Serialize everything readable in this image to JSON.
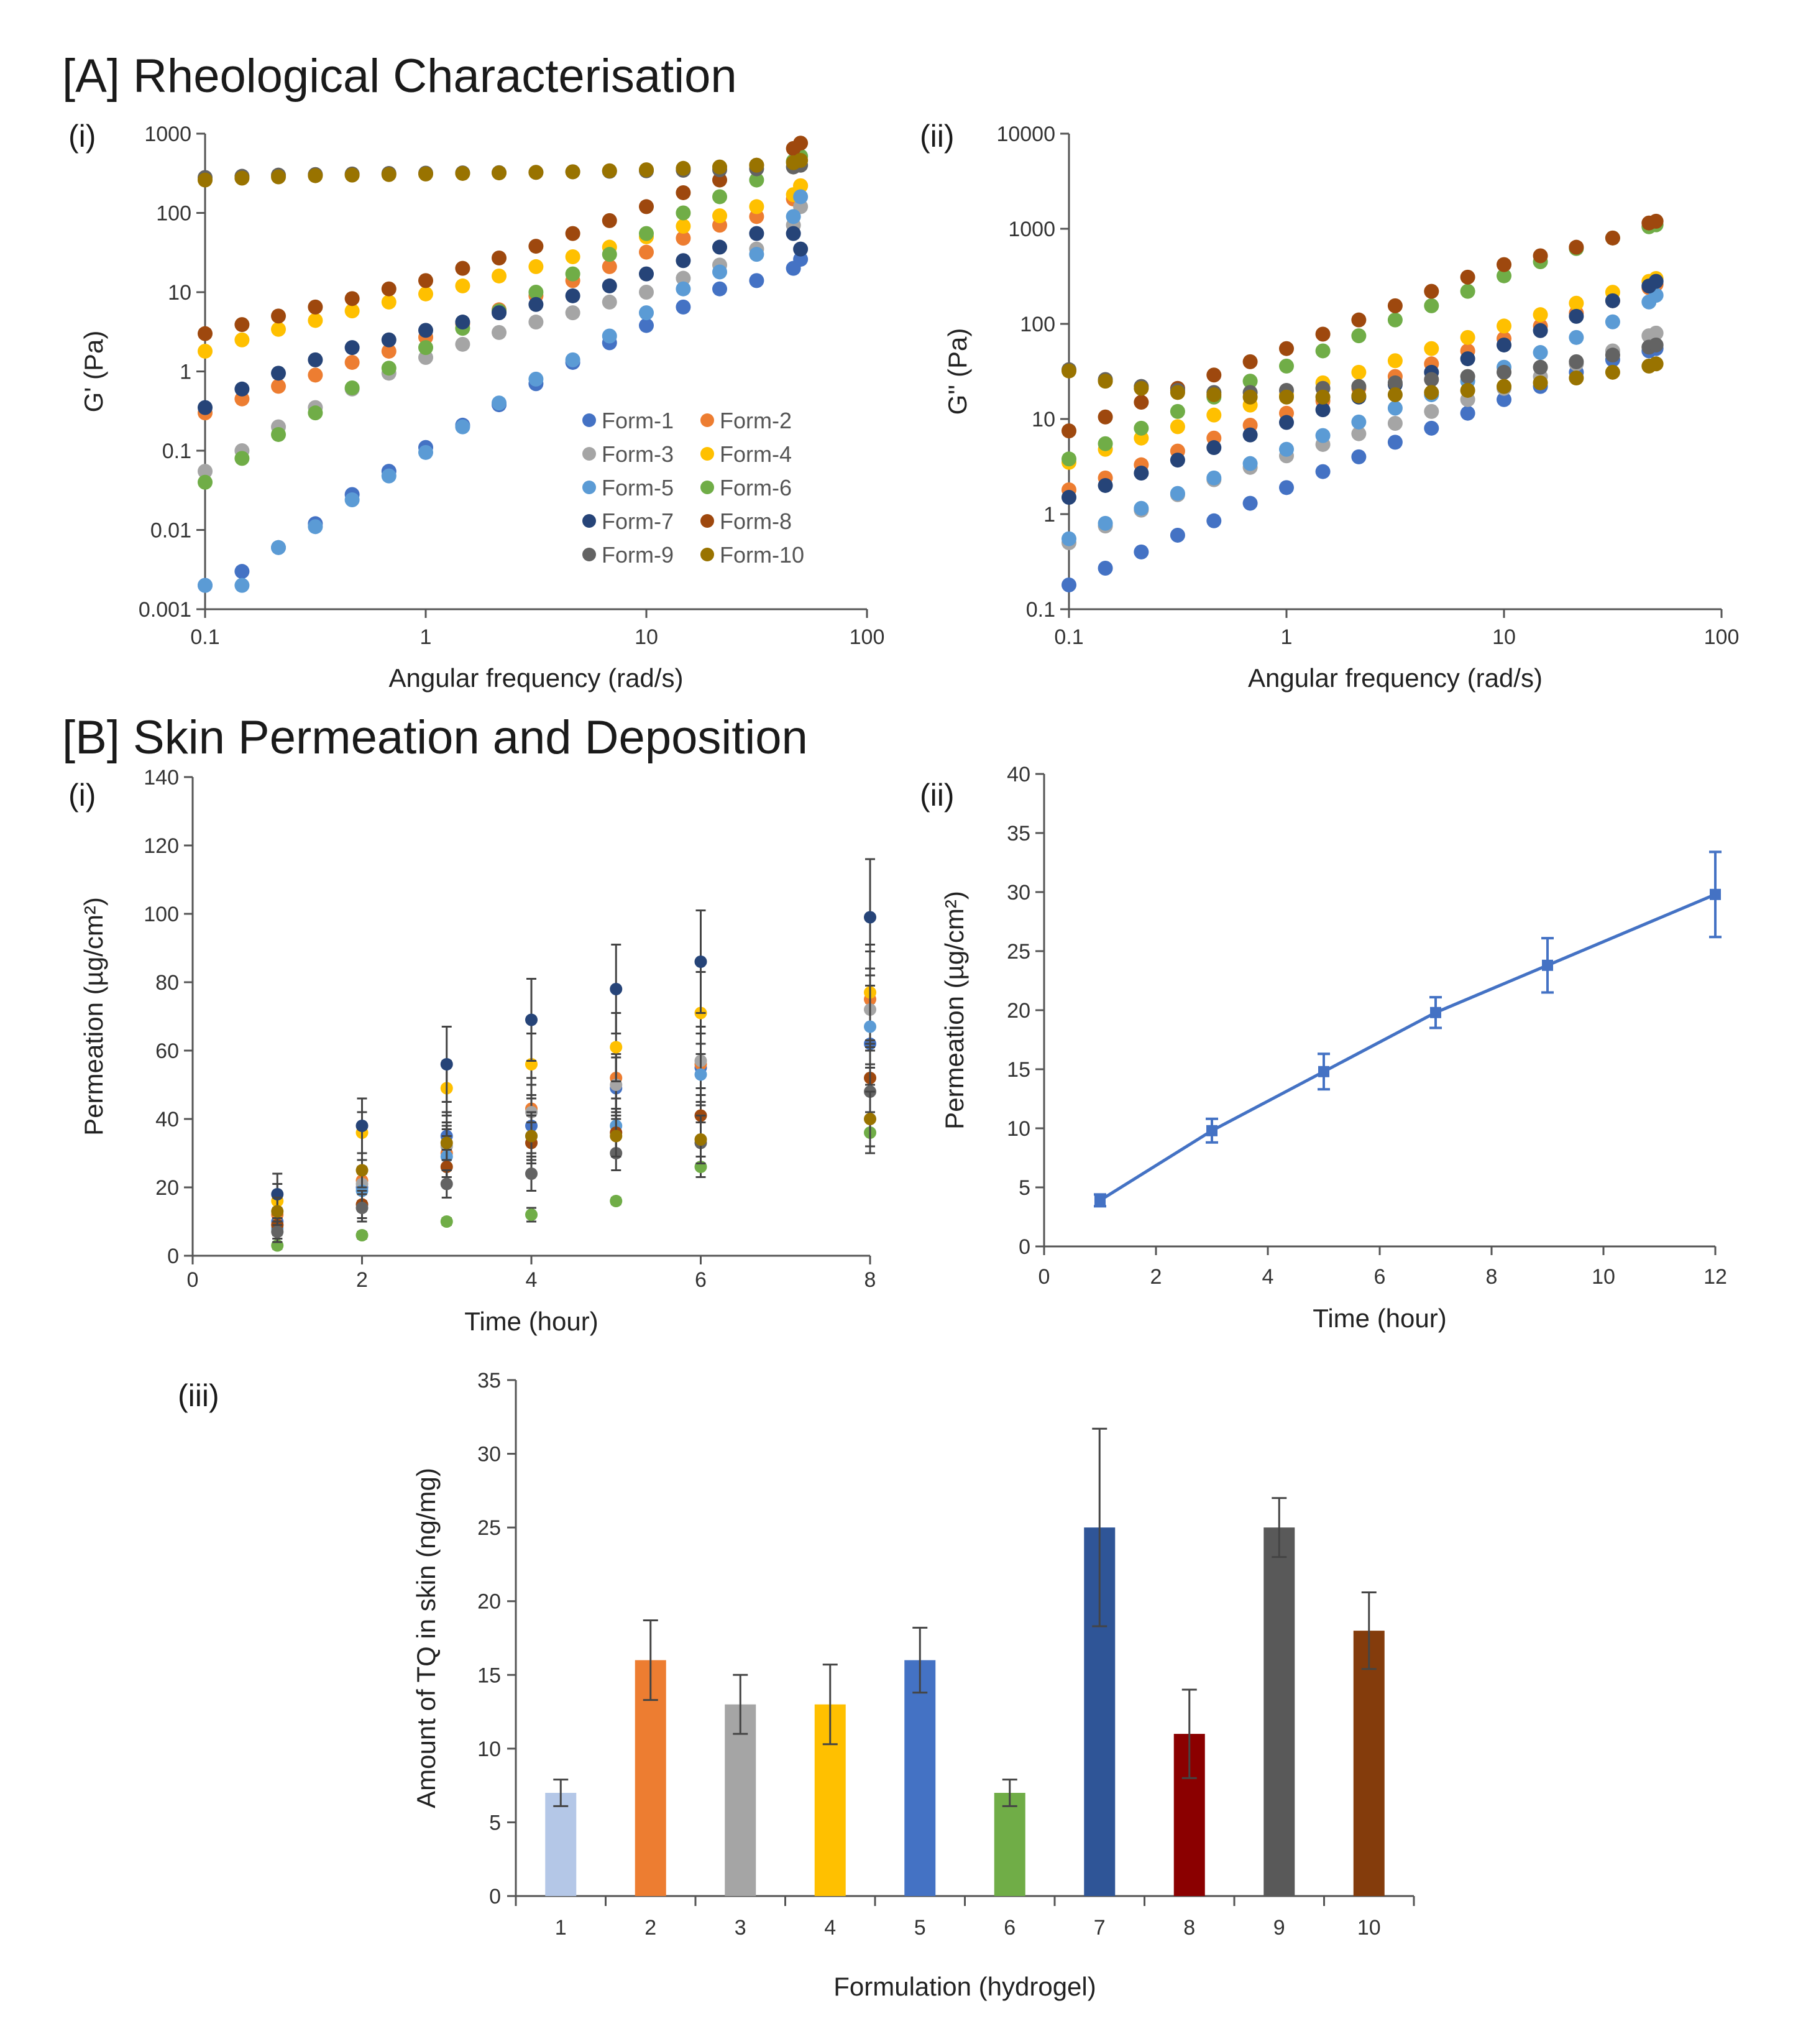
{
  "headings": {
    "a": "[A] Rheological Characterisation",
    "b": "[B] Skin Permeation and Deposition"
  },
  "panel_labels": {
    "a_i": "(i)",
    "a_ii": "(ii)",
    "b_i": "(i)",
    "b_ii": "(ii)",
    "b_iii": "(iii)"
  },
  "chart_data": [
    {
      "id": "a_i",
      "type": "scatter",
      "xlabel": "Angular frequency (rad/s)",
      "ylabel": "G' (Pa)",
      "xscale": "log",
      "yscale": "log",
      "xlim": [
        0.1,
        100
      ],
      "ylim": [
        0.001,
        1000
      ],
      "x_ticks": [
        "0.1",
        "1",
        "10",
        "100"
      ],
      "y_ticks": [
        "0.001",
        "0.01",
        "0.1",
        "1",
        "10",
        "100",
        "1000"
      ],
      "legend_position": "bottom-right",
      "x": [
        0.1,
        0.147,
        0.215,
        0.316,
        0.464,
        0.681,
        1.0,
        1.47,
        2.15,
        3.16,
        4.64,
        6.81,
        10.0,
        14.7,
        21.5,
        31.6,
        46.4,
        50.0
      ],
      "series": [
        {
          "name": "Form-1",
          "color": "#4472c4",
          "values": [
            0.002,
            0.003,
            0.006,
            0.012,
            0.028,
            0.055,
            0.11,
            0.21,
            0.38,
            0.7,
            1.3,
            2.3,
            3.8,
            6.5,
            11,
            14,
            20,
            26
          ]
        },
        {
          "name": "Form-2",
          "color": "#ed7d31",
          "values": [
            0.3,
            0.45,
            0.65,
            0.9,
            1.3,
            1.8,
            2.7,
            4,
            6,
            9,
            14,
            21,
            32,
            48,
            70,
            90,
            150,
            220
          ]
        },
        {
          "name": "Form-3",
          "color": "#a5a5a5",
          "values": [
            0.055,
            0.1,
            0.2,
            0.35,
            0.6,
            0.95,
            1.5,
            2.2,
            3.1,
            4.2,
            5.5,
            7.5,
            10,
            15,
            22,
            35,
            70,
            120
          ]
        },
        {
          "name": "Form-4",
          "color": "#ffc000",
          "values": [
            1.8,
            2.5,
            3.4,
            4.4,
            5.8,
            7.5,
            9.5,
            12,
            16,
            21,
            28,
            37,
            50,
            68,
            92,
            120,
            170,
            220
          ]
        },
        {
          "name": "Form-5",
          "color": "#5b9bd5",
          "values": [
            0.002,
            0.002,
            0.006,
            0.011,
            0.024,
            0.048,
            0.095,
            0.2,
            0.4,
            0.8,
            1.4,
            2.8,
            5.5,
            11,
            18,
            30,
            90,
            160
          ]
        },
        {
          "name": "Form-6",
          "color": "#70ad47",
          "values": [
            0.04,
            0.08,
            0.16,
            0.3,
            0.62,
            1.1,
            2.0,
            3.5,
            5.8,
            10,
            17,
            30,
            55,
            100,
            160,
            260,
            450,
            520
          ]
        },
        {
          "name": "Form-7",
          "color": "#264478",
          "values": [
            0.35,
            0.6,
            0.95,
            1.4,
            2.0,
            2.5,
            3.3,
            4.2,
            5.5,
            7,
            9,
            12,
            17,
            25,
            37,
            55,
            55,
            35
          ]
        },
        {
          "name": "Form-8",
          "color": "#9e480e",
          "values": [
            3.0,
            3.9,
            5.0,
            6.5,
            8.3,
            11,
            14,
            20,
            27,
            38,
            55,
            80,
            120,
            180,
            260,
            400,
            650,
            760
          ]
        },
        {
          "name": "Form-9",
          "color": "#636363",
          "values": [
            280,
            290,
            300,
            305,
            310,
            315,
            318,
            320,
            322,
            325,
            330,
            335,
            340,
            345,
            350,
            360,
            380,
            400
          ]
        },
        {
          "name": "Form-10",
          "color": "#997300",
          "values": [
            260,
            275,
            285,
            295,
            300,
            305,
            310,
            315,
            320,
            325,
            330,
            340,
            350,
            365,
            380,
            400,
            430,
            460
          ]
        }
      ]
    },
    {
      "id": "a_ii",
      "type": "scatter",
      "xlabel": "Angular frequency (rad/s)",
      "ylabel": "G'' (Pa)",
      "xscale": "log",
      "yscale": "log",
      "xlim": [
        0.1,
        100
      ],
      "ylim": [
        0.1,
        10000
      ],
      "x_ticks": [
        "0.1",
        "1",
        "10",
        "100"
      ],
      "y_ticks": [
        "0.1",
        "1",
        "10",
        "100",
        "1000",
        "10000"
      ],
      "x": [
        0.1,
        0.147,
        0.215,
        0.316,
        0.464,
        0.681,
        1.0,
        1.47,
        2.15,
        3.16,
        4.64,
        6.81,
        10.0,
        14.7,
        21.5,
        31.6,
        46.4,
        50.0
      ],
      "series": [
        {
          "name": "Form-1",
          "color": "#4472c4",
          "values": [
            0.18,
            0.27,
            0.4,
            0.6,
            0.85,
            1.3,
            1.9,
            2.8,
            4.0,
            5.7,
            8.0,
            11.5,
            16,
            22,
            31,
            42,
            52,
            55
          ]
        },
        {
          "name": "Form-2",
          "color": "#ed7d31",
          "values": [
            1.8,
            2.4,
            3.3,
            4.6,
            6.3,
            8.6,
            11.5,
            15.5,
            21,
            28,
            38,
            52,
            70,
            95,
            130,
            175,
            240,
            260
          ]
        },
        {
          "name": "Form-3",
          "color": "#a5a5a5",
          "values": [
            0.5,
            0.75,
            1.1,
            1.6,
            2.3,
            3.1,
            4.1,
            5.4,
            7.0,
            9.0,
            12,
            16,
            21,
            28,
            38,
            52,
            75,
            80
          ]
        },
        {
          "name": "Form-4",
          "color": "#ffc000",
          "values": [
            3.5,
            4.8,
            6.3,
            8.3,
            11,
            14,
            18,
            24,
            31,
            41,
            55,
            72,
            95,
            125,
            165,
            215,
            280,
            300
          ]
        },
        {
          "name": "Form-5",
          "color": "#5b9bd5",
          "values": [
            0.55,
            0.8,
            1.15,
            1.65,
            2.4,
            3.4,
            4.8,
            6.7,
            9.3,
            13,
            18,
            25,
            35,
            50,
            72,
            105,
            170,
            200
          ]
        },
        {
          "name": "Form-6",
          "color": "#70ad47",
          "values": [
            3.8,
            5.5,
            8.0,
            12,
            17,
            25,
            36,
            52,
            75,
            110,
            155,
            220,
            320,
            450,
            620,
            800,
            1050,
            1100
          ]
        },
        {
          "name": "Form-7",
          "color": "#264478",
          "values": [
            1.5,
            2.0,
            2.7,
            3.7,
            5.0,
            6.8,
            9.2,
            12.5,
            17,
            23,
            31,
            43,
            60,
            85,
            120,
            175,
            250,
            280
          ]
        },
        {
          "name": "Form-8",
          "color": "#9e480e",
          "values": [
            7.5,
            10.5,
            15,
            21,
            29,
            40,
            55,
            78,
            110,
            155,
            220,
            310,
            420,
            520,
            640,
            800,
            1150,
            1200
          ]
        },
        {
          "name": "Form-9",
          "color": "#636363",
          "values": [
            33,
            26,
            22,
            20,
            19,
            19,
            20,
            21,
            22,
            24,
            26,
            28,
            31,
            35,
            40,
            47,
            57,
            60
          ]
        },
        {
          "name": "Form-10",
          "color": "#997300",
          "values": [
            32,
            25,
            21,
            19,
            18,
            17,
            17,
            17,
            17.5,
            18,
            19,
            20,
            22,
            24,
            27,
            31,
            36,
            38
          ]
        }
      ]
    },
    {
      "id": "b_i",
      "type": "scatter",
      "xlabel": "Time (hour)",
      "ylabel": "Permeation (µg/cm²)",
      "xlim": [
        0,
        8
      ],
      "ylim": [
        0,
        140
      ],
      "x_ticks": [
        "0",
        "2",
        "4",
        "6",
        "8"
      ],
      "y_ticks": [
        "0",
        "20",
        "40",
        "60",
        "80",
        "100",
        "120",
        "140"
      ],
      "x": [
        1,
        2,
        3,
        4,
        5,
        6,
        8
      ],
      "series": [
        {
          "name": "Form-1",
          "color": "#4472c4",
          "values": [
            10,
            20,
            35,
            38,
            49,
            55,
            62
          ],
          "errors": [
            4,
            5,
            7,
            8,
            9,
            10,
            12
          ]
        },
        {
          "name": "Form-2",
          "color": "#ed7d31",
          "values": [
            12,
            22,
            30,
            43,
            52,
            56,
            75
          ],
          "errors": [
            4,
            6,
            7,
            9,
            10,
            11,
            14
          ]
        },
        {
          "name": "Form-3",
          "color": "#a5a5a5",
          "values": [
            9,
            21,
            32,
            42,
            50,
            57,
            72
          ],
          "errors": [
            4,
            5,
            7,
            8,
            9,
            10,
            12
          ]
        },
        {
          "name": "Form-4",
          "color": "#ffc000",
          "values": [
            16,
            36,
            49,
            56,
            61,
            71,
            77
          ],
          "errors": [
            5,
            6,
            8,
            9,
            10,
            12,
            14
          ]
        },
        {
          "name": "Form-5",
          "color": "#5b9bd5",
          "values": [
            8,
            19,
            29,
            35,
            38,
            53,
            67
          ],
          "errors": [
            3,
            5,
            6,
            7,
            8,
            9,
            12
          ]
        },
        {
          "name": "Form-6",
          "color": "#70ad47",
          "values": [
            3,
            6,
            10,
            12,
            16,
            26,
            36
          ],
          "errors": [
            1,
            1,
            1,
            2,
            1,
            3,
            6
          ]
        },
        {
          "name": "Form-7",
          "color": "#264478",
          "values": [
            18,
            38,
            56,
            69,
            78,
            86,
            99
          ],
          "errors": [
            6,
            8,
            11,
            12,
            13,
            15,
            17
          ]
        },
        {
          "name": "Form-8",
          "color": "#9e480e",
          "values": [
            9,
            15,
            26,
            33,
            36,
            41,
            52
          ],
          "errors": [
            3,
            4,
            5,
            6,
            7,
            8,
            10
          ]
        },
        {
          "name": "Form-9",
          "color": "#636363",
          "values": [
            7,
            14,
            21,
            24,
            30,
            33,
            48
          ],
          "errors": [
            3,
            4,
            4,
            5,
            5,
            6,
            8
          ]
        },
        {
          "name": "Form-10",
          "color": "#997300",
          "values": [
            13,
            25,
            33,
            35,
            35,
            34,
            40
          ],
          "errors": [
            4,
            5,
            5,
            6,
            6,
            7,
            8
          ]
        }
      ]
    },
    {
      "id": "b_ii",
      "type": "line",
      "xlabel": "Time (hour)",
      "ylabel": "Permeation (µg/cm²)",
      "xlim": [
        0,
        12
      ],
      "ylim": [
        0,
        40
      ],
      "x_ticks": [
        "0",
        "2",
        "4",
        "6",
        "8",
        "10",
        "12"
      ],
      "y_ticks": [
        "0",
        "5",
        "10",
        "15",
        "20",
        "25",
        "30",
        "35",
        "40"
      ],
      "x": [
        1,
        3,
        5,
        7,
        9,
        12
      ],
      "series": [
        {
          "name": "Permeation",
          "color": "#4472c4",
          "values": [
            3.9,
            9.8,
            14.8,
            19.8,
            23.8,
            29.8
          ],
          "errors": [
            0.5,
            1.0,
            1.5,
            1.3,
            2.3,
            3.6
          ]
        }
      ]
    },
    {
      "id": "b_iii",
      "type": "bar",
      "xlabel": "Formulation (hydrogel)",
      "ylabel": "Amount of TQ in skin (ng/mg)",
      "ylim": [
        0,
        35
      ],
      "y_ticks": [
        "0",
        "5",
        "10",
        "15",
        "20",
        "25",
        "30",
        "35"
      ],
      "categories": [
        "1",
        "2",
        "3",
        "4",
        "5",
        "6",
        "7",
        "8",
        "9",
        "10"
      ],
      "values": [
        7,
        16,
        13,
        13,
        16,
        7,
        25,
        11,
        25,
        18
      ],
      "errors": [
        0.9,
        2.7,
        2.0,
        2.7,
        2.2,
        0.9,
        6.7,
        3.0,
        2.0,
        2.6
      ],
      "colors": [
        "#b4c7e7",
        "#ed7d31",
        "#a5a5a5",
        "#ffc000",
        "#4472c4",
        "#70ad47",
        "#2f5597",
        "#8b0000",
        "#595959",
        "#843c0c"
      ]
    }
  ]
}
